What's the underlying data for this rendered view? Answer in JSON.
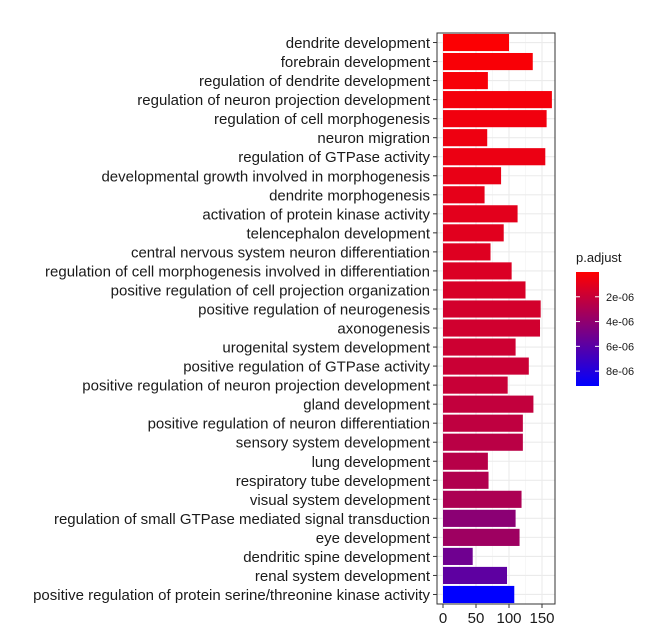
{
  "chart_data": {
    "type": "bar",
    "orientation": "horizontal",
    "title": "",
    "xlabel": "",
    "ylabel": "",
    "xlim": [
      0,
      165
    ],
    "xticks": [
      0,
      50,
      100,
      150
    ],
    "grid": true,
    "legend_placement": "right",
    "legend": {
      "title": "p.adjust",
      "type": "colorbar",
      "range": [
        0,
        9.2e-06
      ],
      "ticks": [
        {
          "value": 2e-06,
          "label": "2e-06"
        },
        {
          "value": 4e-06,
          "label": "4e-06"
        },
        {
          "value": 6e-06,
          "label": "6e-06"
        },
        {
          "value": 8e-06,
          "label": "8e-06"
        }
      ],
      "color_low": "#FF0000",
      "color_high": "#0000FF"
    },
    "categories": [
      "dendrite development",
      "forebrain development",
      "regulation of dendrite development",
      "regulation of neuron projection development",
      "regulation of cell morphogenesis",
      "neuron migration",
      "regulation of GTPase activity",
      "developmental growth involved in morphogenesis",
      "dendrite morphogenesis",
      "activation of protein kinase activity",
      "telencephalon development",
      "central nervous system neuron differentiation",
      "regulation of cell morphogenesis involved in differentiation",
      "positive regulation of cell projection organization",
      "positive regulation of neurogenesis",
      "axonogenesis",
      "urogenital system development",
      "positive regulation of GTPase activity",
      "positive regulation of neuron projection development",
      "gland development",
      "positive regulation of neuron differentiation",
      "sensory system development",
      "lung development",
      "respiratory tube development",
      "visual system development",
      "regulation of small GTPase mediated signal transduction",
      "eye development",
      "dendritic spine development",
      "renal system development",
      "positive regulation of protein serine/threonine kinase activity"
    ],
    "values": [
      100,
      136,
      68,
      165,
      157,
      67,
      155,
      88,
      63,
      113,
      92,
      72,
      104,
      125,
      148,
      147,
      110,
      130,
      98,
      137,
      121,
      121,
      68,
      69,
      119,
      110,
      116,
      45,
      97,
      108
    ],
    "p_adjust": [
      1e-07,
      2e-07,
      3e-07,
      4e-07,
      5e-07,
      6e-07,
      7e-07,
      8e-07,
      9e-07,
      1e-06,
      1.1e-06,
      1.2e-06,
      1.3e-06,
      1.4e-06,
      1.6e-06,
      1.7e-06,
      1.8e-06,
      1.9e-06,
      2e-06,
      2.2e-06,
      2.3e-06,
      2.5e-06,
      2.6e-06,
      2.8e-06,
      3e-06,
      4.2e-06,
      3.5e-06,
      5.2e-06,
      5.8e-06,
      9.2e-06
    ]
  }
}
